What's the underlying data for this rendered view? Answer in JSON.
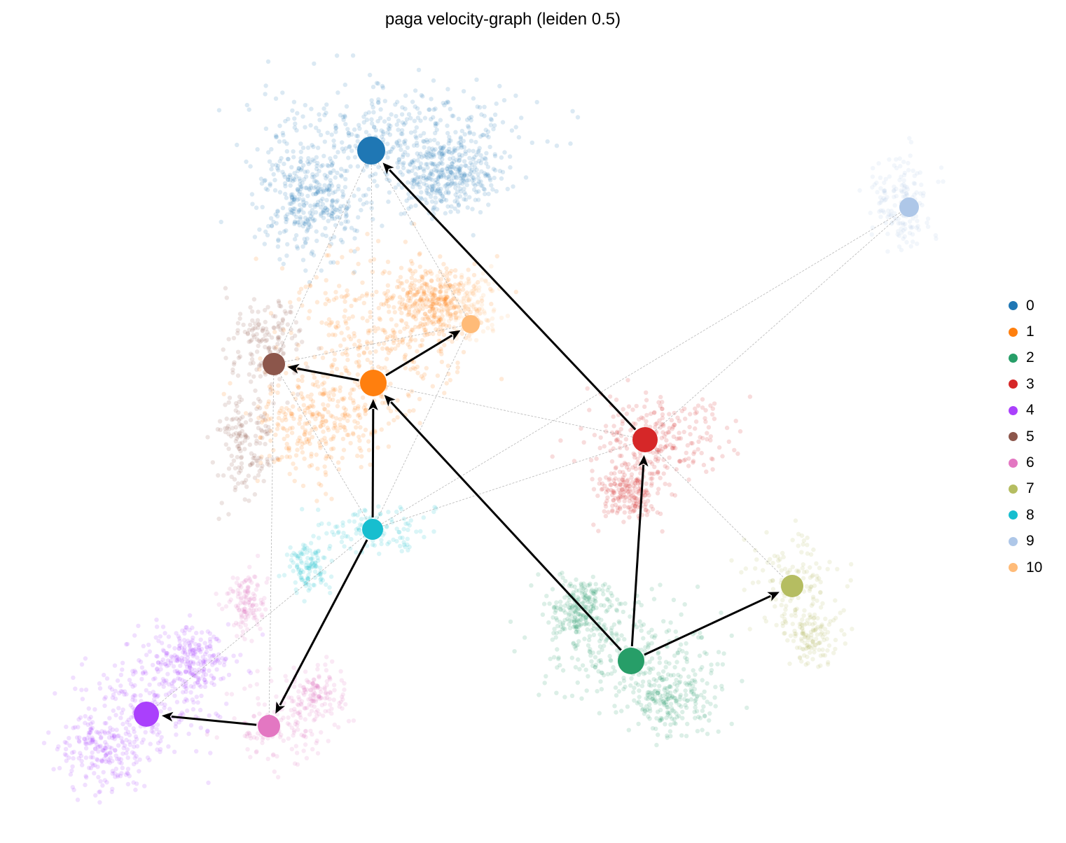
{
  "chart_data": {
    "type": "scatter",
    "title": "paga velocity-graph (leiden 0.5)",
    "xlabel": "",
    "ylabel": "",
    "grid": false,
    "axes_visible": false,
    "legend_position": "right",
    "clusters": [
      {
        "id": "0",
        "color": "#1f77b4",
        "node": [
          530,
          215
        ],
        "size": 40,
        "spread": [
          [
            560,
            190,
            170,
            65
          ],
          [
            440,
            290,
            65,
            70
          ],
          [
            640,
            250,
            70,
            50
          ]
        ],
        "n": 1100
      },
      {
        "id": "1",
        "color": "#ff7f0e",
        "node": [
          533,
          547
        ],
        "size": 38,
        "spread": [
          [
            540,
            480,
            120,
            100
          ],
          [
            450,
            600,
            80,
            70
          ],
          [
            620,
            430,
            60,
            40
          ]
        ],
        "n": 950
      },
      {
        "id": "2",
        "color": "#279e68",
        "node": [
          901,
          944
        ],
        "size": 38,
        "spread": [
          [
            890,
            930,
            120,
            70
          ],
          [
            960,
            1000,
            60,
            50
          ],
          [
            830,
            870,
            40,
            40
          ]
        ],
        "n": 700
      },
      {
        "id": "3",
        "color": "#d62728",
        "node": [
          921,
          628
        ],
        "size": 36,
        "spread": [
          [
            940,
            620,
            90,
            50
          ],
          [
            900,
            700,
            40,
            40
          ]
        ],
        "n": 450
      },
      {
        "id": "4",
        "color": "#aa40fc",
        "node": [
          209,
          1020
        ],
        "size": 36,
        "spread": [
          [
            210,
            1000,
            100,
            70
          ],
          [
            150,
            1070,
            60,
            50
          ],
          [
            270,
            940,
            50,
            40
          ]
        ],
        "n": 650
      },
      {
        "id": "5",
        "color": "#8c564b",
        "node": [
          391,
          520
        ],
        "size": 32,
        "spread": [
          [
            380,
            480,
            50,
            60
          ],
          [
            350,
            630,
            40,
            70
          ]
        ],
        "n": 300
      },
      {
        "id": "6",
        "color": "#e377c2",
        "node": [
          384,
          1037
        ],
        "size": 32,
        "spread": [
          [
            400,
            1030,
            70,
            60
          ],
          [
            450,
            990,
            40,
            40
          ],
          [
            350,
            860,
            25,
            40
          ]
        ],
        "n": 380
      },
      {
        "id": "7",
        "color": "#b5bd61",
        "node": [
          1131,
          837
        ],
        "size": 32,
        "spread": [
          [
            1130,
            830,
            55,
            60
          ],
          [
            1160,
            910,
            35,
            40
          ]
        ],
        "n": 260
      },
      {
        "id": "8",
        "color": "#17becf",
        "node": [
          532,
          756
        ],
        "size": 30,
        "spread": [
          [
            530,
            760,
            80,
            35
          ],
          [
            440,
            810,
            30,
            30
          ]
        ],
        "n": 240
      },
      {
        "id": "9",
        "color": "#aec7e8",
        "node": [
          1298,
          296
        ],
        "size": 28,
        "spread": [
          [
            1290,
            290,
            40,
            60
          ]
        ],
        "n": 160
      },
      {
        "id": "10",
        "color": "#ffbb78",
        "node": [
          672,
          463
        ],
        "size": 26,
        "spread": [
          [
            670,
            440,
            40,
            40
          ]
        ],
        "n": 120
      }
    ],
    "transitions": [
      {
        "from": "3",
        "to": "0"
      },
      {
        "from": "1",
        "to": "5"
      },
      {
        "from": "1",
        "to": "10"
      },
      {
        "from": "8",
        "to": "1"
      },
      {
        "from": "2",
        "to": "1"
      },
      {
        "from": "2",
        "to": "3"
      },
      {
        "from": "2",
        "to": "7"
      },
      {
        "from": "8",
        "to": "6"
      },
      {
        "from": "6",
        "to": "4"
      }
    ],
    "weak_edges": [
      [
        "0",
        "1"
      ],
      [
        "0",
        "5"
      ],
      [
        "0",
        "10"
      ],
      [
        "5",
        "10"
      ],
      [
        "5",
        "8"
      ],
      [
        "10",
        "8"
      ],
      [
        "9",
        "8"
      ],
      [
        "9",
        "3"
      ],
      [
        "5",
        "6"
      ],
      [
        "8",
        "4"
      ],
      [
        "3",
        "7"
      ],
      [
        "1",
        "3"
      ],
      [
        "8",
        "3"
      ]
    ]
  }
}
